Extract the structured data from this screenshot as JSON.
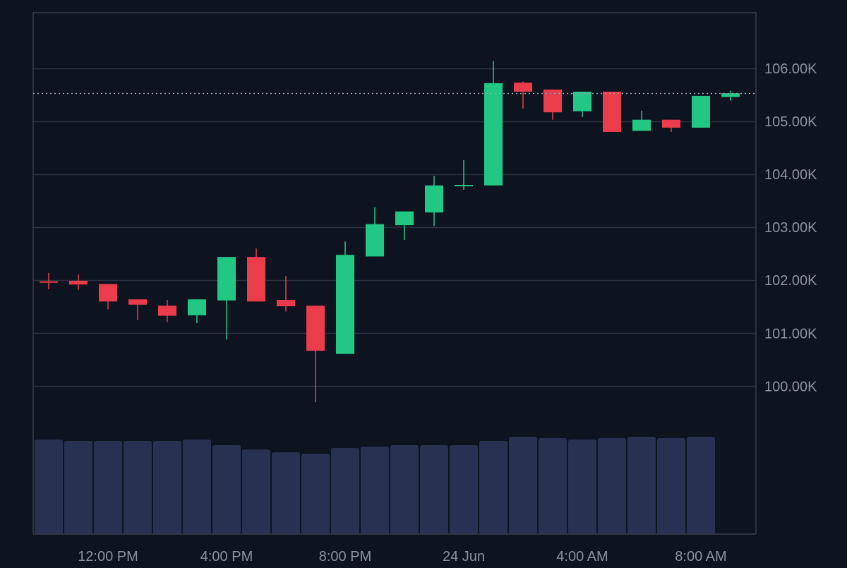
{
  "colors": {
    "background": "#0e1320",
    "grid": "#2a3142",
    "frame": "#363d4e",
    "up": "#22c784",
    "down": "#ea3c4a",
    "volume": "#283152",
    "axis_text": "#8b92a2",
    "last_price_line": "#9aa1b0"
  },
  "chart_data": {
    "type": "candlestick",
    "title": "",
    "xlabel": "",
    "ylabel": "",
    "ylim": [
      99300,
      107050
    ],
    "grid": true,
    "y_ticks": [
      {
        "value": 106000,
        "label": "106.00K"
      },
      {
        "value": 105000,
        "label": "105.00K"
      },
      {
        "value": 104000,
        "label": "104.00K"
      },
      {
        "value": 103000,
        "label": "103.00K"
      },
      {
        "value": 102000,
        "label": "102.00K"
      },
      {
        "value": 101000,
        "label": "101.00K"
      },
      {
        "value": 100000,
        "label": "100.00K"
      }
    ],
    "x_ticks": [
      {
        "index": 2,
        "label": "12:00 PM"
      },
      {
        "index": 6,
        "label": "4:00 PM"
      },
      {
        "index": 10,
        "label": "8:00 PM"
      },
      {
        "index": 14,
        "label": "24 Jun"
      },
      {
        "index": 18,
        "label": "4:00 AM"
      },
      {
        "index": 22,
        "label": "8:00 AM"
      }
    ],
    "last_price": 105530,
    "candles": [
      {
        "open": 101980,
        "high": 102140,
        "low": 101830,
        "close": 101960
      },
      {
        "open": 101990,
        "high": 102110,
        "low": 101820,
        "close": 101920
      },
      {
        "open": 101930,
        "high": 101930,
        "low": 101450,
        "close": 101600
      },
      {
        "open": 101640,
        "high": 101640,
        "low": 101250,
        "close": 101540
      },
      {
        "open": 101520,
        "high": 101630,
        "low": 101210,
        "close": 101330
      },
      {
        "open": 101340,
        "high": 101640,
        "low": 101190,
        "close": 101640
      },
      {
        "open": 101620,
        "high": 102440,
        "low": 100880,
        "close": 102440
      },
      {
        "open": 102440,
        "high": 102600,
        "low": 101600,
        "close": 101600
      },
      {
        "open": 101630,
        "high": 102080,
        "low": 101410,
        "close": 101510
      },
      {
        "open": 101520,
        "high": 101520,
        "low": 99700,
        "close": 100670
      },
      {
        "open": 100610,
        "high": 102730,
        "low": 100610,
        "close": 102480
      },
      {
        "open": 102450,
        "high": 103380,
        "low": 102450,
        "close": 103060
      },
      {
        "open": 103040,
        "high": 103300,
        "low": 102760,
        "close": 103300
      },
      {
        "open": 103280,
        "high": 103970,
        "low": 103020,
        "close": 103790
      },
      {
        "open": 103790,
        "high": 104270,
        "low": 103710,
        "close": 103800
      },
      {
        "open": 103790,
        "high": 106140,
        "low": 103790,
        "close": 105720
      },
      {
        "open": 105730,
        "high": 105750,
        "low": 105240,
        "close": 105560
      },
      {
        "open": 105600,
        "high": 105600,
        "low": 105030,
        "close": 105170
      },
      {
        "open": 105190,
        "high": 105560,
        "low": 105080,
        "close": 105560
      },
      {
        "open": 105560,
        "high": 105560,
        "low": 104800,
        "close": 104800
      },
      {
        "open": 104820,
        "high": 105200,
        "low": 104820,
        "close": 105030
      },
      {
        "open": 105030,
        "high": 105030,
        "low": 104800,
        "close": 104880
      },
      {
        "open": 104880,
        "high": 105480,
        "low": 104880,
        "close": 105480
      },
      {
        "open": 105460,
        "high": 105580,
        "low": 105390,
        "close": 105530
      }
    ],
    "volume": [
      134,
      132,
      132,
      132,
      132,
      134,
      126,
      120,
      116,
      114,
      122,
      124,
      126,
      126,
      126,
      132,
      138,
      136,
      134,
      136,
      138,
      136,
      138,
      0
    ]
  }
}
